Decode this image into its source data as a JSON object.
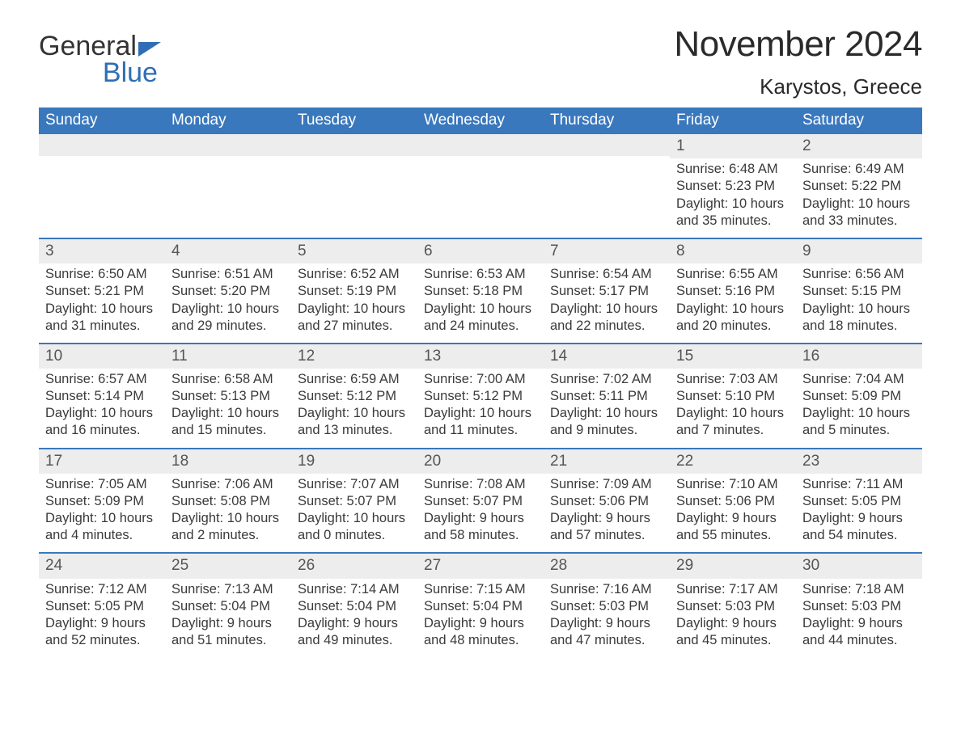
{
  "brand": {
    "part1": "General",
    "part2": "Blue",
    "accent": "#2f6eb4"
  },
  "title": "November 2024",
  "location": "Karystos, Greece",
  "colors": {
    "header_bg": "#3a78bd",
    "header_fg": "#ffffff",
    "row_divider": "#3a78bd",
    "daynum_bg": "#ededed",
    "text": "#333333"
  },
  "days_of_week": [
    "Sunday",
    "Monday",
    "Tuesday",
    "Wednesday",
    "Thursday",
    "Friday",
    "Saturday"
  ],
  "weeks": [
    [
      null,
      null,
      null,
      null,
      null,
      {
        "n": "1",
        "sunrise": "Sunrise: 6:48 AM",
        "sunset": "Sunset: 5:23 PM",
        "day1": "Daylight: 10 hours",
        "day2": "and 35 minutes."
      },
      {
        "n": "2",
        "sunrise": "Sunrise: 6:49 AM",
        "sunset": "Sunset: 5:22 PM",
        "day1": "Daylight: 10 hours",
        "day2": "and 33 minutes."
      }
    ],
    [
      {
        "n": "3",
        "sunrise": "Sunrise: 6:50 AM",
        "sunset": "Sunset: 5:21 PM",
        "day1": "Daylight: 10 hours",
        "day2": "and 31 minutes."
      },
      {
        "n": "4",
        "sunrise": "Sunrise: 6:51 AM",
        "sunset": "Sunset: 5:20 PM",
        "day1": "Daylight: 10 hours",
        "day2": "and 29 minutes."
      },
      {
        "n": "5",
        "sunrise": "Sunrise: 6:52 AM",
        "sunset": "Sunset: 5:19 PM",
        "day1": "Daylight: 10 hours",
        "day2": "and 27 minutes."
      },
      {
        "n": "6",
        "sunrise": "Sunrise: 6:53 AM",
        "sunset": "Sunset: 5:18 PM",
        "day1": "Daylight: 10 hours",
        "day2": "and 24 minutes."
      },
      {
        "n": "7",
        "sunrise": "Sunrise: 6:54 AM",
        "sunset": "Sunset: 5:17 PM",
        "day1": "Daylight: 10 hours",
        "day2": "and 22 minutes."
      },
      {
        "n": "8",
        "sunrise": "Sunrise: 6:55 AM",
        "sunset": "Sunset: 5:16 PM",
        "day1": "Daylight: 10 hours",
        "day2": "and 20 minutes."
      },
      {
        "n": "9",
        "sunrise": "Sunrise: 6:56 AM",
        "sunset": "Sunset: 5:15 PM",
        "day1": "Daylight: 10 hours",
        "day2": "and 18 minutes."
      }
    ],
    [
      {
        "n": "10",
        "sunrise": "Sunrise: 6:57 AM",
        "sunset": "Sunset: 5:14 PM",
        "day1": "Daylight: 10 hours",
        "day2": "and 16 minutes."
      },
      {
        "n": "11",
        "sunrise": "Sunrise: 6:58 AM",
        "sunset": "Sunset: 5:13 PM",
        "day1": "Daylight: 10 hours",
        "day2": "and 15 minutes."
      },
      {
        "n": "12",
        "sunrise": "Sunrise: 6:59 AM",
        "sunset": "Sunset: 5:12 PM",
        "day1": "Daylight: 10 hours",
        "day2": "and 13 minutes."
      },
      {
        "n": "13",
        "sunrise": "Sunrise: 7:00 AM",
        "sunset": "Sunset: 5:12 PM",
        "day1": "Daylight: 10 hours",
        "day2": "and 11 minutes."
      },
      {
        "n": "14",
        "sunrise": "Sunrise: 7:02 AM",
        "sunset": "Sunset: 5:11 PM",
        "day1": "Daylight: 10 hours",
        "day2": "and 9 minutes."
      },
      {
        "n": "15",
        "sunrise": "Sunrise: 7:03 AM",
        "sunset": "Sunset: 5:10 PM",
        "day1": "Daylight: 10 hours",
        "day2": "and 7 minutes."
      },
      {
        "n": "16",
        "sunrise": "Sunrise: 7:04 AM",
        "sunset": "Sunset: 5:09 PM",
        "day1": "Daylight: 10 hours",
        "day2": "and 5 minutes."
      }
    ],
    [
      {
        "n": "17",
        "sunrise": "Sunrise: 7:05 AM",
        "sunset": "Sunset: 5:09 PM",
        "day1": "Daylight: 10 hours",
        "day2": "and 4 minutes."
      },
      {
        "n": "18",
        "sunrise": "Sunrise: 7:06 AM",
        "sunset": "Sunset: 5:08 PM",
        "day1": "Daylight: 10 hours",
        "day2": "and 2 minutes."
      },
      {
        "n": "19",
        "sunrise": "Sunrise: 7:07 AM",
        "sunset": "Sunset: 5:07 PM",
        "day1": "Daylight: 10 hours",
        "day2": "and 0 minutes."
      },
      {
        "n": "20",
        "sunrise": "Sunrise: 7:08 AM",
        "sunset": "Sunset: 5:07 PM",
        "day1": "Daylight: 9 hours",
        "day2": "and 58 minutes."
      },
      {
        "n": "21",
        "sunrise": "Sunrise: 7:09 AM",
        "sunset": "Sunset: 5:06 PM",
        "day1": "Daylight: 9 hours",
        "day2": "and 57 minutes."
      },
      {
        "n": "22",
        "sunrise": "Sunrise: 7:10 AM",
        "sunset": "Sunset: 5:06 PM",
        "day1": "Daylight: 9 hours",
        "day2": "and 55 minutes."
      },
      {
        "n": "23",
        "sunrise": "Sunrise: 7:11 AM",
        "sunset": "Sunset: 5:05 PM",
        "day1": "Daylight: 9 hours",
        "day2": "and 54 minutes."
      }
    ],
    [
      {
        "n": "24",
        "sunrise": "Sunrise: 7:12 AM",
        "sunset": "Sunset: 5:05 PM",
        "day1": "Daylight: 9 hours",
        "day2": "and 52 minutes."
      },
      {
        "n": "25",
        "sunrise": "Sunrise: 7:13 AM",
        "sunset": "Sunset: 5:04 PM",
        "day1": "Daylight: 9 hours",
        "day2": "and 51 minutes."
      },
      {
        "n": "26",
        "sunrise": "Sunrise: 7:14 AM",
        "sunset": "Sunset: 5:04 PM",
        "day1": "Daylight: 9 hours",
        "day2": "and 49 minutes."
      },
      {
        "n": "27",
        "sunrise": "Sunrise: 7:15 AM",
        "sunset": "Sunset: 5:04 PM",
        "day1": "Daylight: 9 hours",
        "day2": "and 48 minutes."
      },
      {
        "n": "28",
        "sunrise": "Sunrise: 7:16 AM",
        "sunset": "Sunset: 5:03 PM",
        "day1": "Daylight: 9 hours",
        "day2": "and 47 minutes."
      },
      {
        "n": "29",
        "sunrise": "Sunrise: 7:17 AM",
        "sunset": "Sunset: 5:03 PM",
        "day1": "Daylight: 9 hours",
        "day2": "and 45 minutes."
      },
      {
        "n": "30",
        "sunrise": "Sunrise: 7:18 AM",
        "sunset": "Sunset: 5:03 PM",
        "day1": "Daylight: 9 hours",
        "day2": "and 44 minutes."
      }
    ]
  ]
}
